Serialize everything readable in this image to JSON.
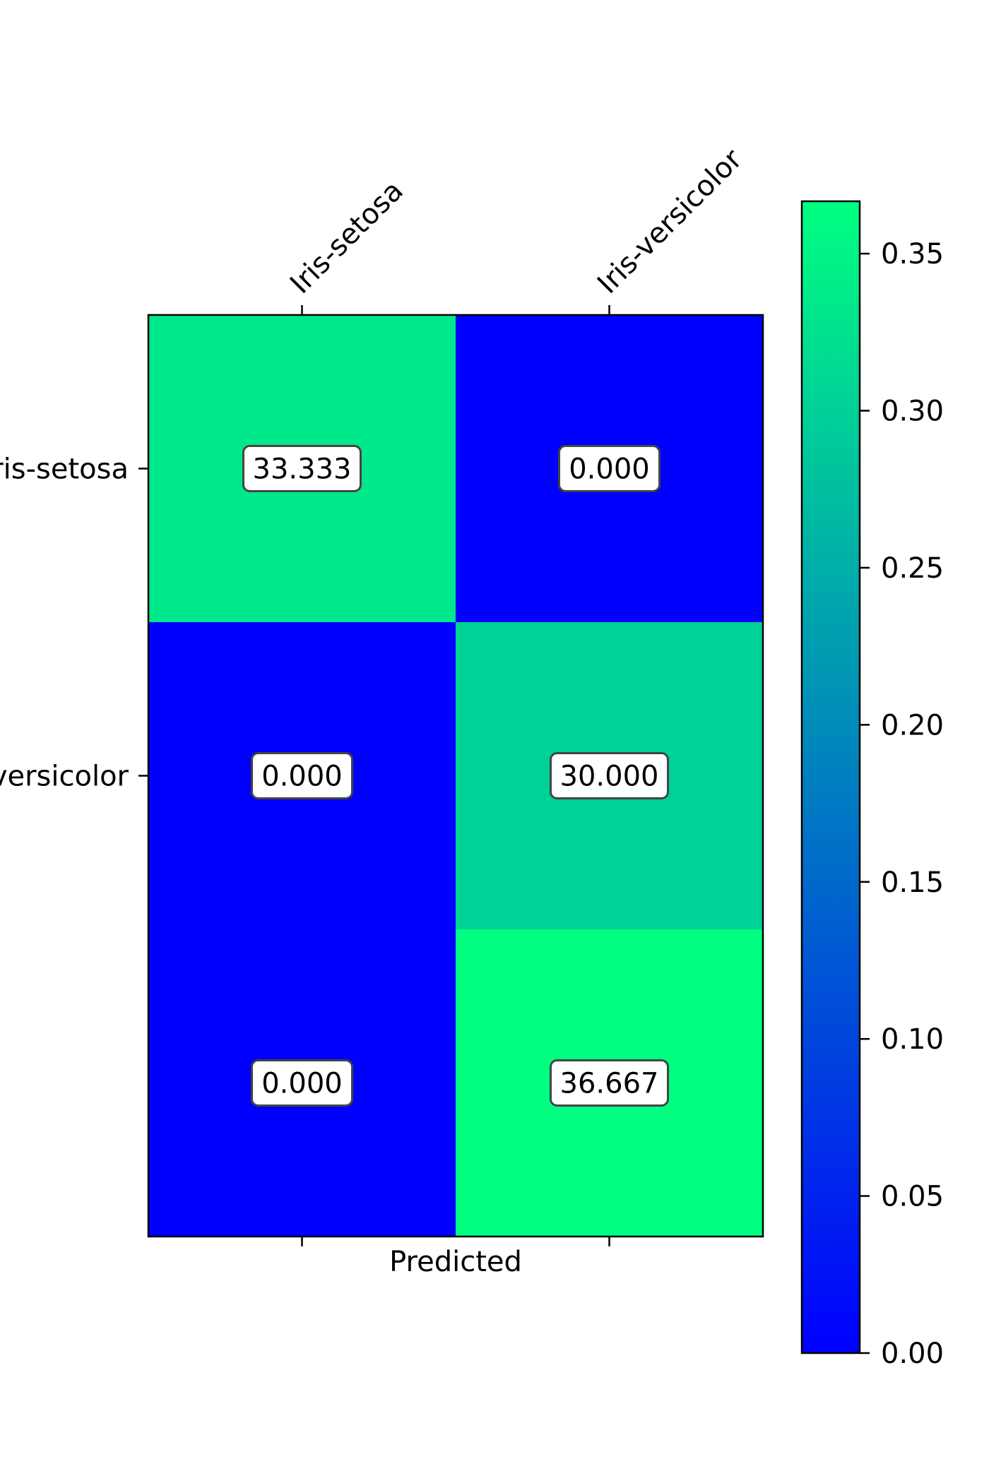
{
  "chart_data": {
    "type": "heatmap",
    "title": "",
    "xlabel": "Predicted",
    "ylabel": "",
    "x_categories": [
      "Iris-setosa",
      "Iris-versicolor"
    ],
    "y_categories": [
      "Iris-setosa",
      "Iris-versicolor",
      ""
    ],
    "values": [
      [
        0.33333,
        0.0
      ],
      [
        0.0,
        0.3
      ],
      [
        0.0,
        0.36667
      ]
    ],
    "cell_labels": [
      [
        "33.333",
        "0.000"
      ],
      [
        "0.000",
        "30.000"
      ],
      [
        "0.000",
        "36.667"
      ]
    ],
    "colormap": "winter",
    "colorbar": {
      "range": [
        0.0,
        0.36667
      ],
      "ticks": [
        0.0,
        0.05,
        0.1,
        0.15,
        0.2,
        0.25,
        0.3,
        0.35
      ],
      "tick_labels": [
        "0.00",
        "0.05",
        "0.10",
        "0.15",
        "0.20",
        "0.25",
        "0.30",
        "0.35"
      ]
    },
    "colors": {
      "low": "#0000ff",
      "high": "#00ff80",
      "label_box_fill": "#ffffff",
      "label_box_edge": "#444444"
    },
    "grid": false,
    "legend": "none"
  }
}
